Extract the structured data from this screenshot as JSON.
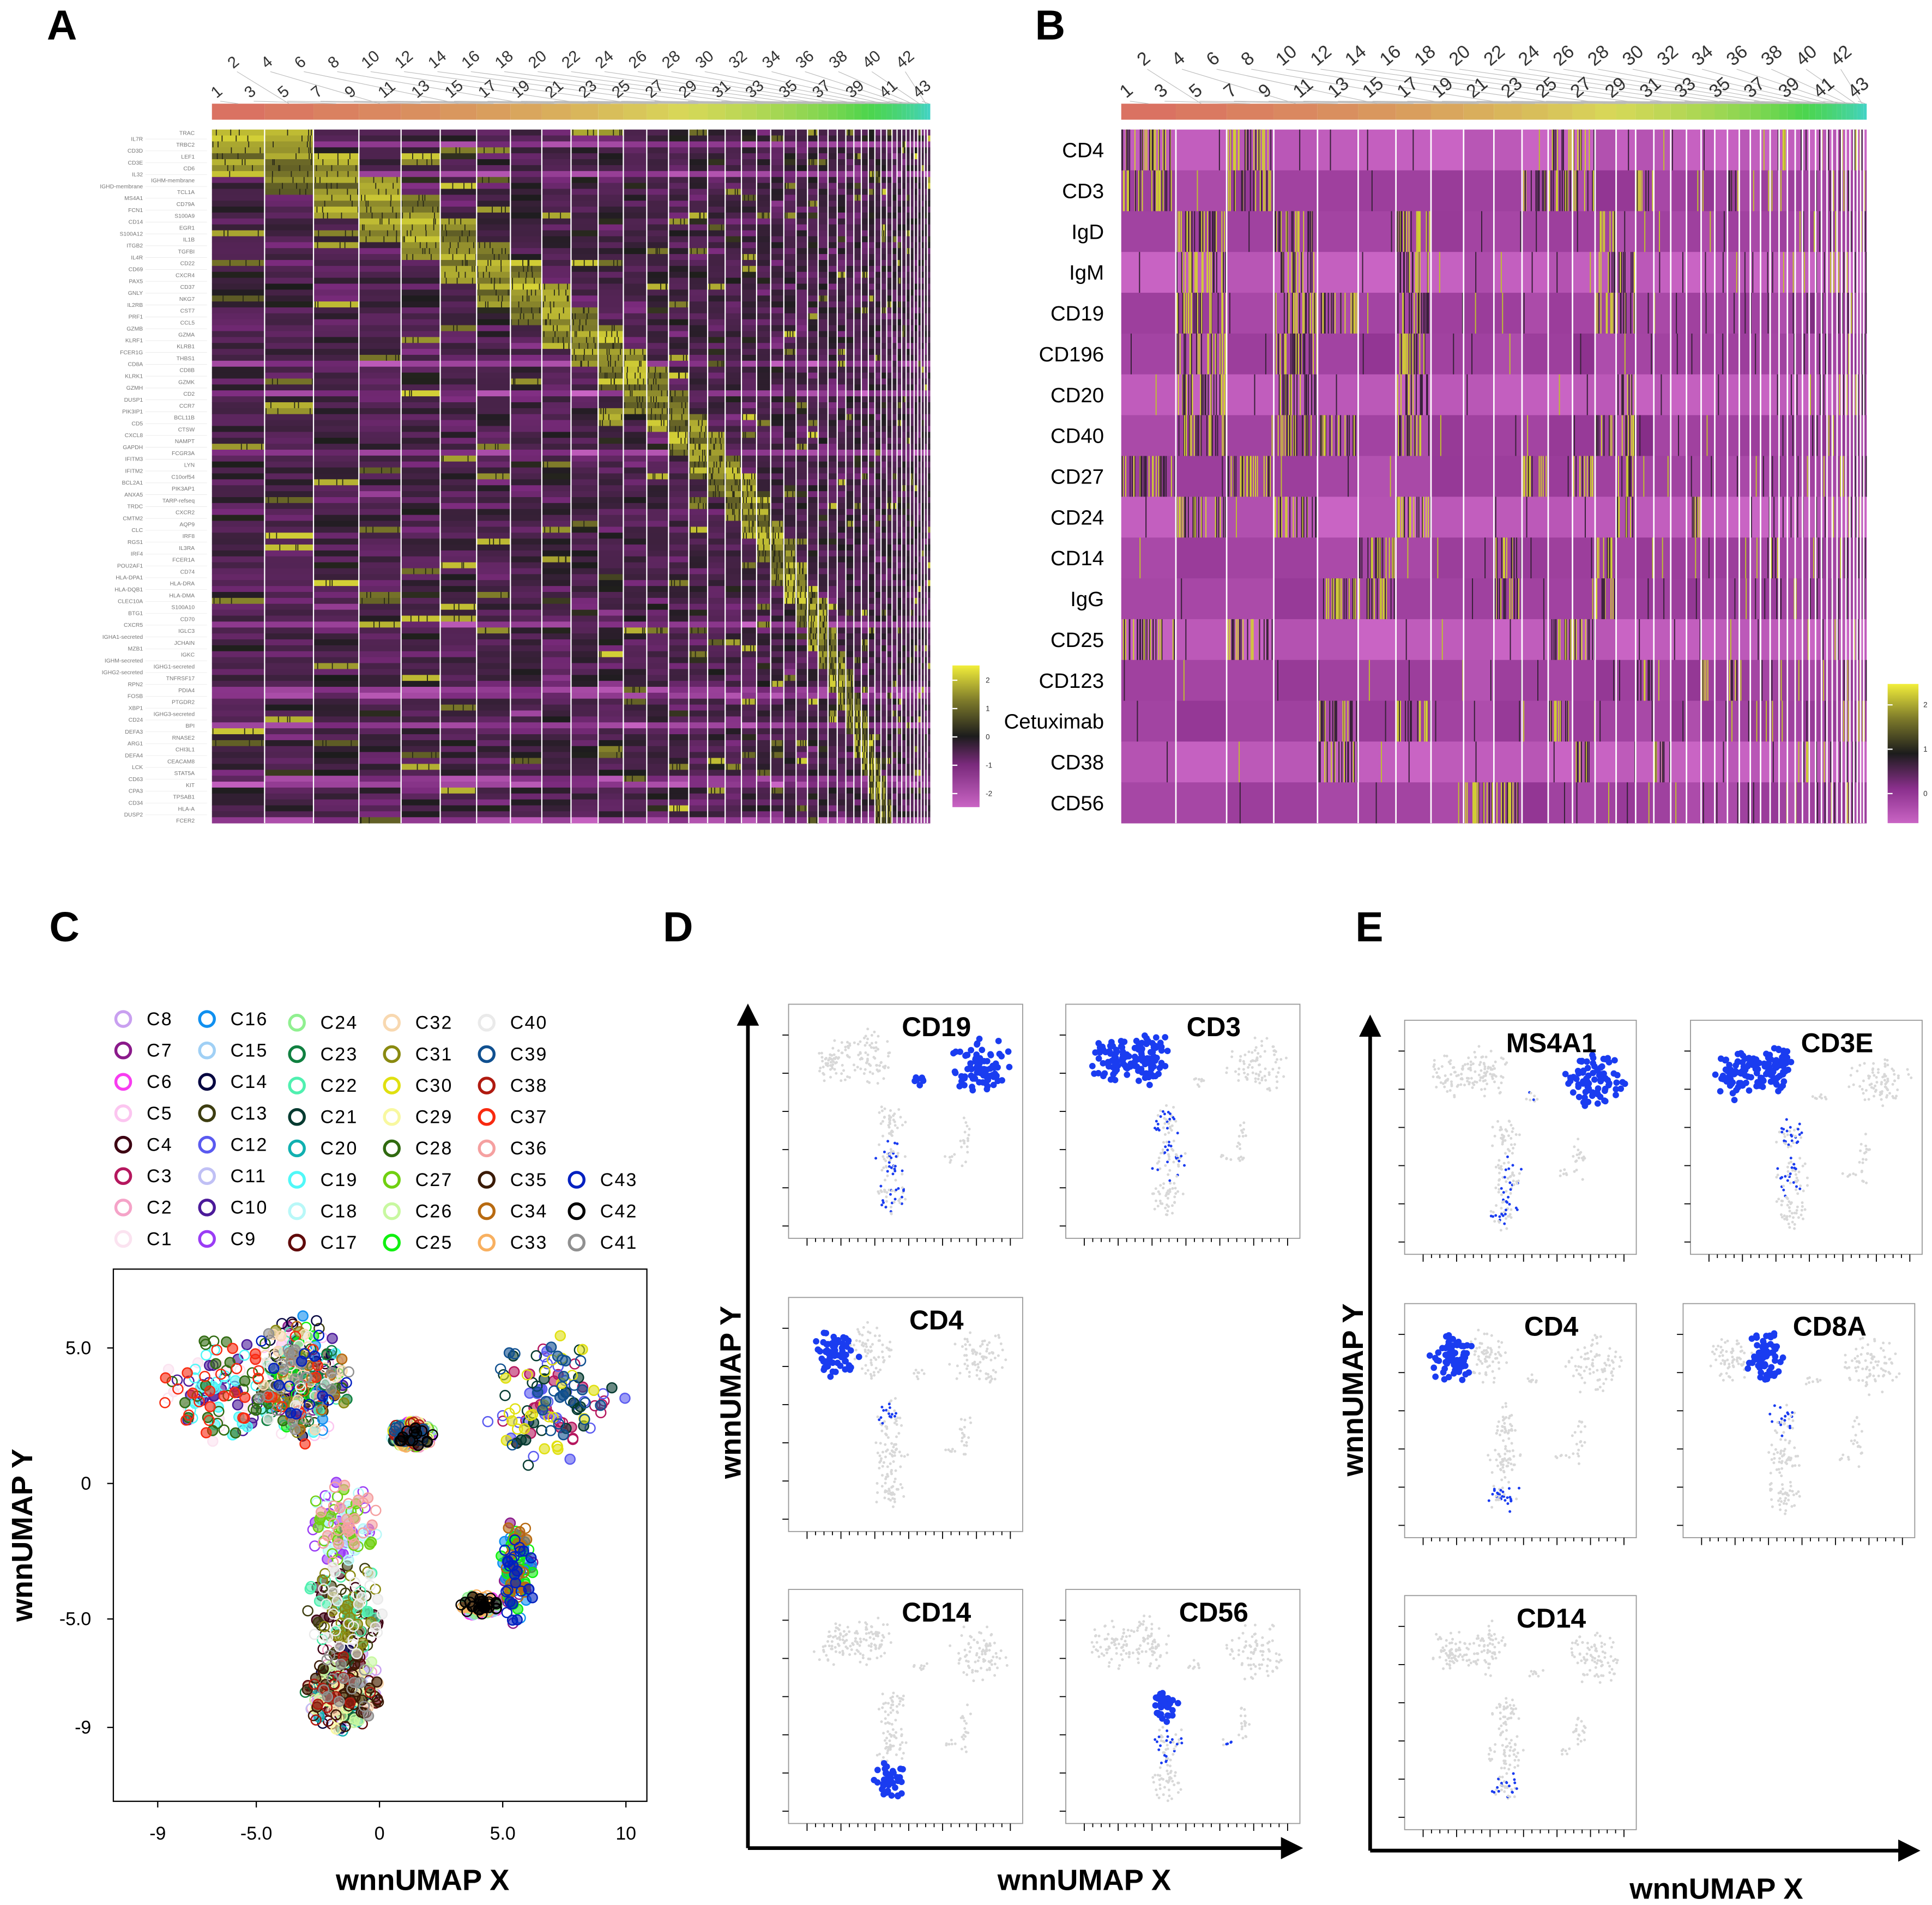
{
  "panels": {
    "a": "A",
    "b": "B",
    "c": "C",
    "d": "D",
    "e": "E"
  },
  "chart_data": [
    {
      "panel": "A",
      "type": "heatmap",
      "title": "",
      "clusters": [
        "1",
        "2",
        "3",
        "4",
        "5",
        "6",
        "7",
        "8",
        "9",
        "10",
        "11",
        "12",
        "13",
        "14",
        "15",
        "16",
        "17",
        "18",
        "19",
        "20",
        "21",
        "22",
        "23",
        "24",
        "25",
        "26",
        "27",
        "28",
        "29",
        "30",
        "31",
        "32",
        "33",
        "34",
        "35",
        "36",
        "37",
        "38",
        "39",
        "40",
        "41",
        "42",
        "43"
      ],
      "genes": [
        "TRAC",
        "IL7R",
        "TRBC2",
        "CD3D",
        "LEF1",
        "CD3E",
        "CD6",
        "IL32",
        "IGHM-membrane",
        "IGHD-membrane",
        "TCL1A",
        "MS4A1",
        "CD79A",
        "FCN1",
        "S100A9",
        "CD14",
        "EGR1",
        "S100A12",
        "IL1B",
        "ITGB2",
        "TGFBI",
        "IL4R",
        "CD22",
        "CD69",
        "CXCR4",
        "PAX5",
        "CD37",
        "GNLY",
        "NKG7",
        "IL2RB",
        "CST7",
        "PRF1",
        "CCL5",
        "GZMB",
        "GZMA",
        "KLRF1",
        "KLRB1",
        "FCER1G",
        "THBS1",
        "CD8A",
        "CD8B",
        "KLRK1",
        "GZMK",
        "GZMH",
        "CD2",
        "DUSP1",
        "CCR7",
        "PIK3IP1",
        "BCL11B",
        "CD5",
        "CTSW",
        "CXCL8",
        "NAMPT",
        "GAPDH",
        "FCGR3A",
        "IFITM3",
        "LYN",
        "IFITM2",
        "C10orf54",
        "BCL2A1",
        "PIK3AP1",
        "ANXA5",
        "TARP-refseq",
        "TRDC",
        "CXCR2",
        "CMTM2",
        "AQP9",
        "CLC",
        "IRF8",
        "RGS1",
        "IL3RA",
        "IRF4",
        "FCER1A",
        "POU2AF1",
        "CD74",
        "HLA-DPA1",
        "HLA-DRA",
        "HLA-DQB1",
        "HLA-DMA",
        "CLEC10A",
        "S100A10",
        "BTG1",
        "CD70",
        "CXCR5",
        "IGLC3",
        "IGHA1-secreted",
        "JCHAIN",
        "MZB1",
        "IGKC",
        "IGHM-secreted",
        "IGHG1-secreted",
        "IGHG2-secreted",
        "TNFRSF17",
        "RPN2",
        "PDIA4",
        "FOSB",
        "PTGDR2",
        "XBP1",
        "IGHG3-secreted",
        "CD24",
        "BPI",
        "DEFA3",
        "RNASE2",
        "ARG1",
        "CHI3L1",
        "DEFA4",
        "CEACAM8",
        "LCK",
        "STAT5A",
        "CD63",
        "KIT",
        "CPA3",
        "TPSAB1",
        "CD34",
        "HLA-A",
        "DUSP2",
        "FCER2"
      ],
      "colorbar": {
        "ticks": [
          "2",
          "1",
          "0",
          "-1",
          "-2"
        ],
        "range": [
          -2.5,
          2.5
        ],
        "colors": [
          "#c964c4",
          "#7a2a7c",
          "#1c1c1c",
          "#7d7a2a",
          "#f2ee3a"
        ]
      }
    },
    {
      "panel": "B",
      "type": "heatmap",
      "clusters": [
        "1",
        "2",
        "3",
        "4",
        "5",
        "6",
        "7",
        "8",
        "9",
        "10",
        "11",
        "12",
        "13",
        "14",
        "15",
        "16",
        "17",
        "18",
        "19",
        "20",
        "21",
        "22",
        "23",
        "24",
        "25",
        "26",
        "27",
        "28",
        "29",
        "30",
        "31",
        "32",
        "33",
        "34",
        "35",
        "36",
        "37",
        "38",
        "39",
        "40",
        "41",
        "42",
        "43"
      ],
      "markers": [
        "CD4",
        "CD3",
        "IgD",
        "IgM",
        "CD19",
        "CD196",
        "CD20",
        "CD40",
        "CD27",
        "CD24",
        "CD14",
        "IgG",
        "CD25",
        "CD123",
        "Cetuximab",
        "CD38",
        "CD56"
      ],
      "high_clusters": {
        "CD4": [
          1,
          3,
          12,
          13,
          27,
          40
        ],
        "CD3": [
          1,
          3,
          11,
          12,
          13,
          16,
          22
        ],
        "IgD": [
          2,
          4,
          7,
          14
        ],
        "IgM": [
          2,
          4,
          7,
          14,
          15
        ],
        "CD19": [
          2,
          4,
          5,
          7,
          14,
          15
        ],
        "CD196": [
          2,
          4,
          7
        ],
        "CD20": [
          2,
          4,
          7,
          15
        ],
        "CD40": [
          2,
          4,
          5,
          7,
          14,
          15
        ],
        "CD27": [
          1,
          3,
          11,
          13,
          15
        ],
        "CD24": [
          2,
          4,
          7,
          15,
          19
        ],
        "CD14": [
          6,
          10,
          14,
          26
        ],
        "IgG": [
          5,
          6,
          10,
          14
        ],
        "CD25": [
          1,
          3,
          12,
          13
        ],
        "CD123": [
          16,
          20,
          22
        ],
        "Cetuximab": [
          5,
          7,
          12
        ],
        "CD38": [
          5,
          13,
          17,
          30
        ],
        "CD56": [
          9,
          10,
          38
        ]
      },
      "colorbar": {
        "ticks": [
          "2",
          "1",
          "0"
        ],
        "range": [
          -0.3,
          2.5
        ],
        "colors": [
          "#c964c4",
          "#8a2f8c",
          "#1c1c1c",
          "#7d7a2a",
          "#f2ee3a"
        ]
      }
    },
    {
      "panel": "C",
      "type": "scatter",
      "xlabel": "wnnUMAP X",
      "ylabel": "wnnUMAP Y",
      "xticks": [
        "-9",
        "-5.0",
        "0",
        "5.0",
        "10"
      ],
      "xtick_values": [
        -9,
        -5,
        0,
        5,
        10
      ],
      "yticks": [
        "5.0",
        "0",
        "-5.0",
        "-9"
      ],
      "ytick_values": [
        5,
        0,
        -5,
        -9
      ],
      "xlim": [
        -11,
        11
      ],
      "ylim": [
        -11,
        8
      ],
      "legend_placement": "top",
      "legend": [
        {
          "name": "C1",
          "color": "#fbe3f0"
        },
        {
          "name": "C2",
          "color": "#f5a3c8"
        },
        {
          "name": "C3",
          "color": "#b5175e"
        },
        {
          "name": "C4",
          "color": "#3d0012"
        },
        {
          "name": "C5",
          "color": "#fcc5f0"
        },
        {
          "name": "C6",
          "color": "#f83cf0"
        },
        {
          "name": "C7",
          "color": "#8b1a8b"
        },
        {
          "name": "C8",
          "color": "#c9a0f0"
        },
        {
          "name": "C9",
          "color": "#9a3cf5"
        },
        {
          "name": "C10",
          "color": "#4b1a9a"
        },
        {
          "name": "C11",
          "color": "#c0c0f5"
        },
        {
          "name": "C12",
          "color": "#5a5af0"
        },
        {
          "name": "C13",
          "color": "#3d3d10"
        },
        {
          "name": "C14",
          "color": "#050540"
        },
        {
          "name": "C15",
          "color": "#a0d0f5"
        },
        {
          "name": "C16",
          "color": "#1090f0"
        },
        {
          "name": "C17",
          "color": "#600a0a"
        },
        {
          "name": "C18",
          "color": "#b8f8f8"
        },
        {
          "name": "C19",
          "color": "#50f8f8"
        },
        {
          "name": "C20",
          "color": "#10b0b0"
        },
        {
          "name": "C21",
          "color": "#053a30"
        },
        {
          "name": "C22",
          "color": "#50f0b0"
        },
        {
          "name": "C23",
          "color": "#108040"
        },
        {
          "name": "C24",
          "color": "#90f090"
        },
        {
          "name": "C25",
          "color": "#10f010"
        },
        {
          "name": "C26",
          "color": "#c8f8a0"
        },
        {
          "name": "C27",
          "color": "#70d010"
        },
        {
          "name": "C28",
          "color": "#306a10"
        },
        {
          "name": "C29",
          "color": "#f8f8a0"
        },
        {
          "name": "C30",
          "color": "#e0e010"
        },
        {
          "name": "C31",
          "color": "#8a8a10"
        },
        {
          "name": "C32",
          "color": "#f8d8b0"
        },
        {
          "name": "C33",
          "color": "#f8b060"
        },
        {
          "name": "C34",
          "color": "#b86a10"
        },
        {
          "name": "C35",
          "color": "#3a1a05"
        },
        {
          "name": "C36",
          "color": "#f5a0a0"
        },
        {
          "name": "C37",
          "color": "#f82a10"
        },
        {
          "name": "C38",
          "color": "#b01a10"
        },
        {
          "name": "C39",
          "color": "#105090"
        },
        {
          "name": "C40",
          "color": "#eaeaea"
        },
        {
          "name": "C41",
          "color": "#909090"
        },
        {
          "name": "C42",
          "color": "#000000"
        },
        {
          "name": "C43",
          "color": "#0020c0"
        }
      ],
      "regions": {
        "t_left": [
          -6.5,
          3.5,
          2.3,
          2.0
        ],
        "t_right": [
          -3.2,
          3.8,
          2.0,
          2.4
        ],
        "stem_top": [
          -1.4,
          -1.5,
          1.5,
          1.6
        ],
        "stem_mid": [
          -1.4,
          -4.6,
          1.7,
          1.8
        ],
        "stem_bottom": [
          -1.5,
          -7.6,
          1.6,
          1.6
        ],
        "b_blob": [
          7.0,
          3.0,
          3.0,
          2.5
        ],
        "b_tail": [
          5.6,
          -3.2,
          0.7,
          2.2
        ],
        "small_1": [
          1.3,
          1.8,
          0.9,
          0.5
        ],
        "small_2": [
          4.1,
          -4.5,
          0.8,
          0.4
        ]
      }
    },
    {
      "panel": "D",
      "type": "scatter",
      "xlabel": "wnnUMAP X",
      "ylabel": "wnnUMAP Y",
      "features": [
        {
          "name": "CD19",
          "high_regions": [
            "b_blob",
            "small_1"
          ],
          "partial_regions": [
            "stem_mid",
            "stem_bottom"
          ]
        },
        {
          "name": "CD3",
          "high_regions": [
            "t_left",
            "t_right"
          ],
          "partial_regions": [
            "stem_top",
            "stem_mid"
          ]
        },
        {
          "name": "CD4",
          "high_regions": [
            "t_left"
          ],
          "partial_regions": [
            "stem_top"
          ]
        },
        {
          "name": "CD14",
          "high_regions": [
            "stem_bottom"
          ],
          "partial_regions": []
        },
        {
          "name": "CD56",
          "high_regions": [
            "stem_top"
          ],
          "partial_regions": [
            "stem_mid",
            "small_2"
          ]
        }
      ]
    },
    {
      "panel": "E",
      "type": "scatter",
      "xlabel": "wnnUMAP X",
      "ylabel": "wnnUMAP Y",
      "features": [
        {
          "name": "MS4A1",
          "high_regions": [
            "b_blob"
          ],
          "partial_regions": [
            "stem_mid",
            "stem_bottom",
            "small_1"
          ]
        },
        {
          "name": "CD3E",
          "high_regions": [
            "t_left",
            "t_right"
          ],
          "partial_regions": [
            "stem_top",
            "stem_mid"
          ]
        },
        {
          "name": "CD4",
          "high_regions": [
            "t_left"
          ],
          "partial_regions": [
            "stem_bottom"
          ]
        },
        {
          "name": "CD8A",
          "high_regions": [
            "t_right"
          ],
          "partial_regions": [
            "stem_top"
          ]
        },
        {
          "name": "CD14",
          "high_regions": [],
          "partial_regions": [
            "stem_bottom"
          ]
        }
      ]
    }
  ]
}
